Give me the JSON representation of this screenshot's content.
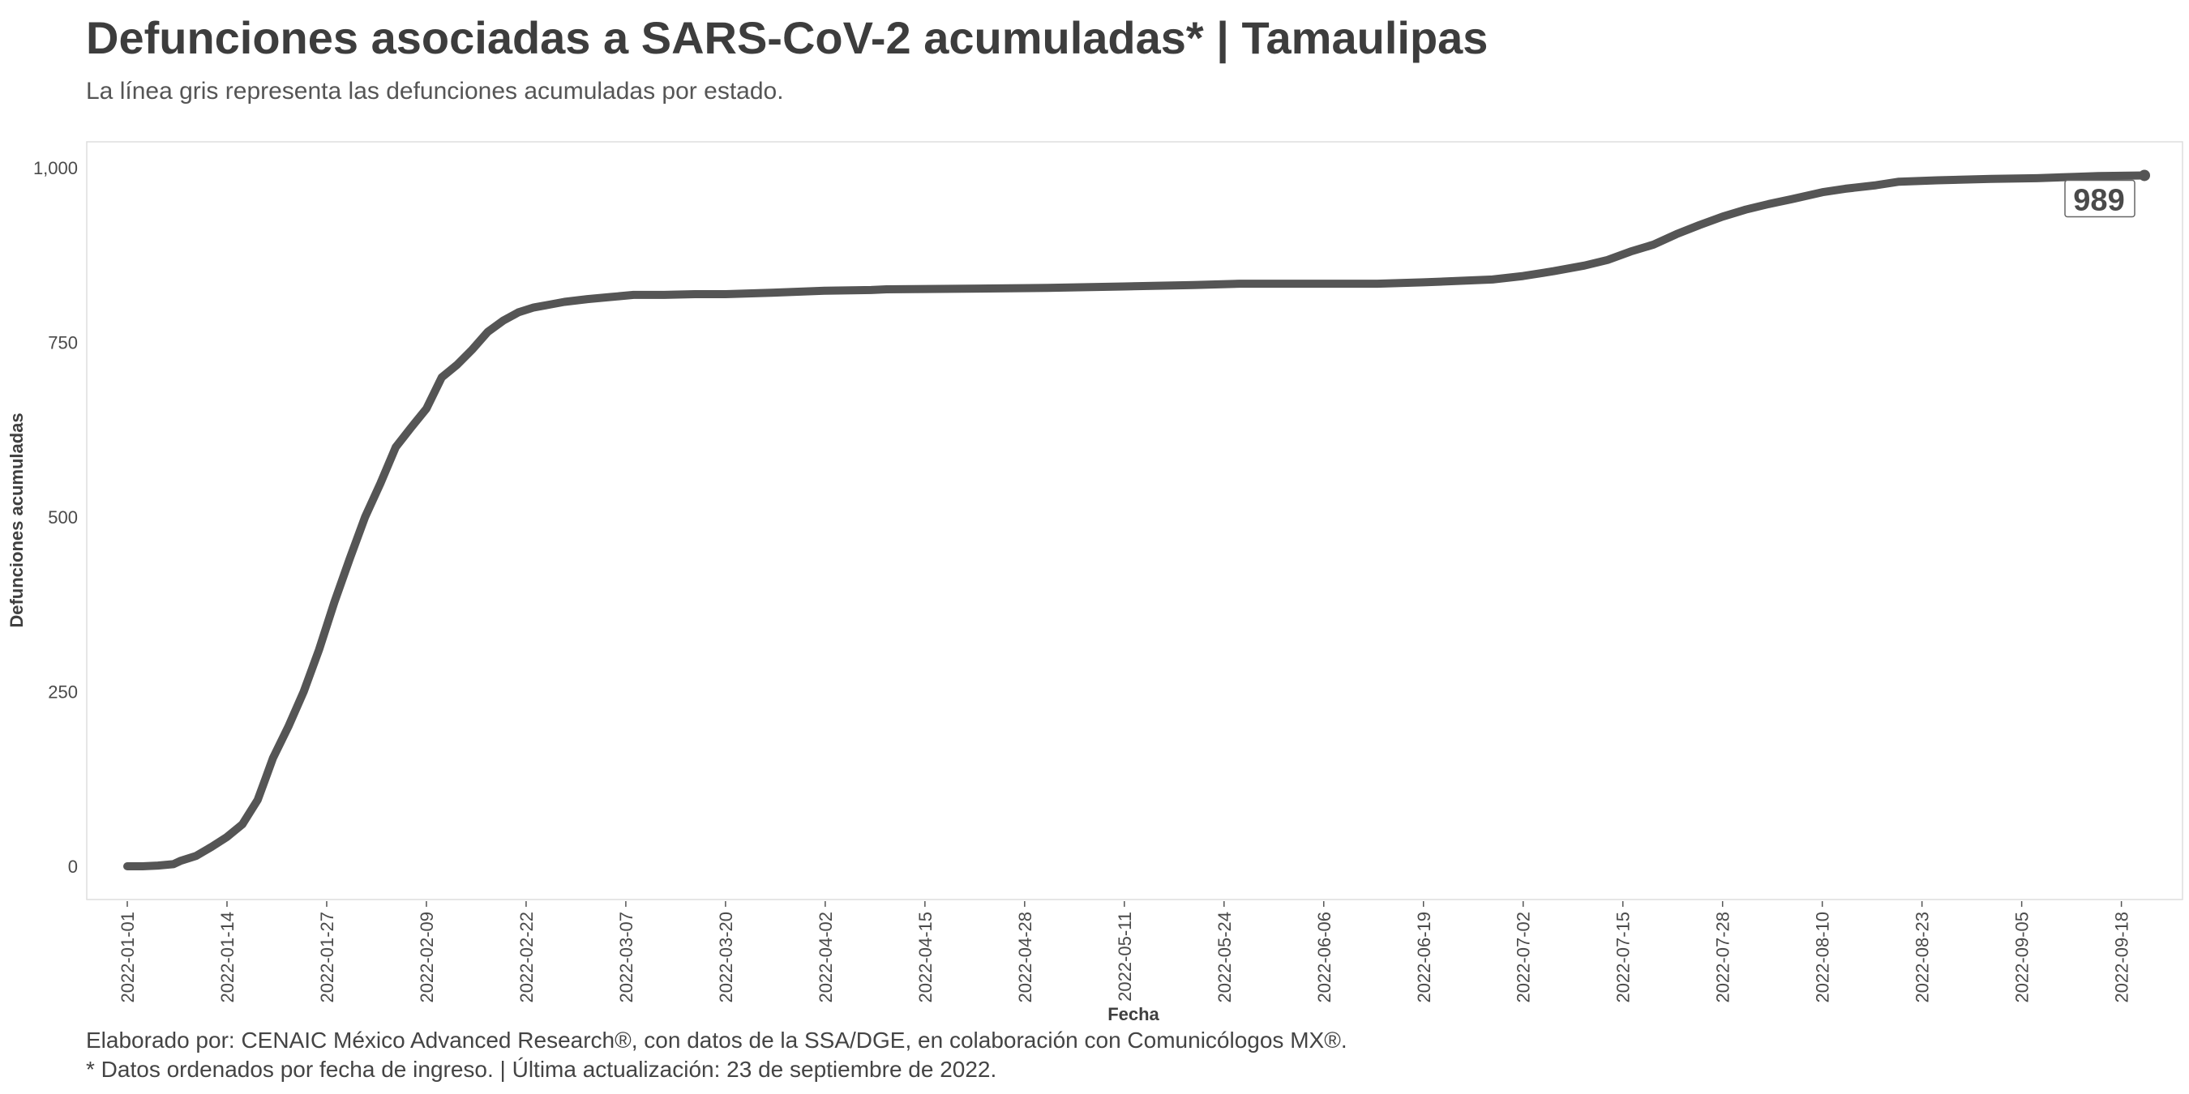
{
  "header": {
    "title": "Defunciones asociadas a SARS-CoV-2 acumuladas* | Tamaulipas",
    "subtitle": "La línea gris representa las defunciones acumuladas por estado."
  },
  "footer": {
    "credit": "Elaborado por: CENAIC México Advanced Research®, con datos de la SSA/DGE, en colaboración con Comunicólogos MX®.",
    "note": "* Datos ordenados por fecha de ingreso. | Última actualización: 23 de septiembre de 2022."
  },
  "colors": {
    "line": "#555555",
    "panel_border": "#dddddd"
  },
  "chart_data": {
    "type": "line",
    "xlabel": "Fecha",
    "ylabel": "Defunciones acumuladas",
    "xlim": [
      "2022-01-01",
      "2022-09-21"
    ],
    "ylim": [
      0,
      1000
    ],
    "yticks": [
      0,
      250,
      500,
      750,
      1000
    ],
    "ytick_labels": [
      "0",
      "250",
      "500",
      "750",
      "1,000"
    ],
    "xticks": [
      "2022-01-01",
      "2022-01-14",
      "2022-01-27",
      "2022-02-09",
      "2022-02-22",
      "2022-03-07",
      "2022-03-20",
      "2022-04-02",
      "2022-04-15",
      "2022-04-28",
      "2022-05-11",
      "2022-05-24",
      "2022-06-06",
      "2022-06-19",
      "2022-07-02",
      "2022-07-15",
      "2022-07-28",
      "2022-08-10",
      "2022-08-23",
      "2022-09-05",
      "2022-09-18"
    ],
    "grid": false,
    "end_label": "989",
    "series": [
      {
        "x": [
          "2022-01-01",
          "2022-01-03",
          "2022-01-05",
          "2022-01-07",
          "2022-01-08",
          "2022-01-10",
          "2022-01-12",
          "2022-01-14",
          "2022-01-16",
          "2022-01-18",
          "2022-01-19",
          "2022-01-20",
          "2022-01-22",
          "2022-01-24",
          "2022-01-26",
          "2022-01-28",
          "2022-01-30",
          "2022-02-01",
          "2022-02-03",
          "2022-02-05",
          "2022-02-07",
          "2022-02-09",
          "2022-02-11",
          "2022-02-13",
          "2022-02-15",
          "2022-02-17",
          "2022-02-19",
          "2022-02-21",
          "2022-02-23",
          "2022-02-25",
          "2022-02-27",
          "2022-03-02",
          "2022-03-05",
          "2022-03-08",
          "2022-03-12",
          "2022-03-16",
          "2022-03-20",
          "2022-03-26",
          "2022-04-02",
          "2022-04-08",
          "2022-04-10",
          "2022-04-22",
          "2022-05-01",
          "2022-05-11",
          "2022-05-20",
          "2022-05-26",
          "2022-06-13",
          "2022-06-19",
          "2022-06-28",
          "2022-07-02",
          "2022-07-06",
          "2022-07-10",
          "2022-07-13",
          "2022-07-16",
          "2022-07-19",
          "2022-07-22",
          "2022-07-25",
          "2022-07-28",
          "2022-07-31",
          "2022-08-03",
          "2022-08-06",
          "2022-08-10",
          "2022-08-13",
          "2022-08-17",
          "2022-08-20",
          "2022-08-25",
          "2022-09-01",
          "2022-09-07",
          "2022-09-12",
          "2022-09-15",
          "2022-09-21"
        ],
        "values": [
          0,
          0,
          1,
          3,
          8,
          15,
          28,
          42,
          60,
          95,
          125,
          155,
          200,
          250,
          310,
          378,
          440,
          500,
          548,
          600,
          628,
          655,
          700,
          718,
          740,
          765,
          781,
          793,
          800,
          804,
          808,
          812,
          815,
          818,
          818,
          819,
          819,
          821,
          824,
          825,
          826,
          827,
          828,
          830,
          832,
          834,
          834,
          836,
          840,
          845,
          852,
          860,
          868,
          880,
          890,
          905,
          918,
          930,
          940,
          948,
          955,
          965,
          970,
          975,
          980,
          982,
          984,
          985,
          987,
          988,
          989
        ]
      }
    ]
  }
}
